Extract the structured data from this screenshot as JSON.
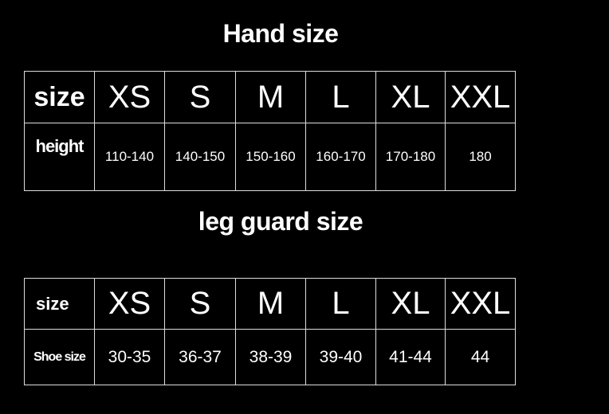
{
  "hand": {
    "title": "Hand size",
    "header_label": "size",
    "row_label": "height",
    "sizes": [
      "XS",
      "S",
      "M",
      "L",
      "XL",
      "XXL"
    ],
    "values": [
      "110-140",
      "140-150",
      "150-160",
      "160-170",
      "170-180",
      "180"
    ]
  },
  "leg": {
    "title": "leg guard size",
    "header_label": "size",
    "row_label": "Shoe size",
    "sizes": [
      "XS",
      "S",
      "M",
      "L",
      "XL",
      "XXL"
    ],
    "values": [
      "30-35",
      "36-37",
      "38-39",
      "39-40",
      "41-44",
      "44"
    ]
  },
  "colors": {
    "background": "#000000",
    "text": "#ffffff",
    "border": "#dddddd"
  }
}
